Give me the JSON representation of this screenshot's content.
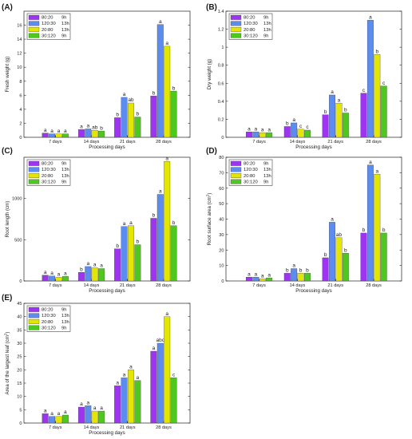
{
  "colors": {
    "purple": "#9D35F0",
    "blue": "#5C8CF0",
    "yellow": "#E3E600",
    "green": "#4EC81E",
    "axis": "#222222"
  },
  "legend": [
    {
      "label": "80:20",
      "hours": "9h"
    },
    {
      "label": "120:30",
      "hours": "13h"
    },
    {
      "label": "20:80",
      "hours": "13h"
    },
    {
      "label": "30:120",
      "hours": "9h"
    }
  ],
  "chart_data": [
    {
      "panel": "(A)",
      "type": "bar",
      "xlabel": "Processing days",
      "ylabel": "Fresh weight (g)",
      "ylim": [
        0,
        18
      ],
      "yticks": [
        "0",
        "2",
        "4",
        "6",
        "8",
        "10",
        "12",
        "14",
        "16"
      ],
      "categories": [
        "7 days",
        "14 days",
        "21 days",
        "28 days"
      ],
      "series": [
        {
          "name": "80:20 9h",
          "values": [
            0.6,
            1.1,
            2.8,
            5.9
          ],
          "letters": [
            "a",
            "a",
            "b",
            "b"
          ]
        },
        {
          "name": "120:30 13h",
          "values": [
            0.5,
            1.2,
            5.7,
            16.1
          ],
          "letters": [
            "a",
            "a",
            "a",
            "a"
          ]
        },
        {
          "name": "20:80 13h",
          "values": [
            0.5,
            1.0,
            4.9,
            13.0
          ],
          "letters": [
            "a",
            "ab",
            "ab",
            "a"
          ]
        },
        {
          "name": "30:120 9h",
          "values": [
            0.5,
            0.9,
            2.9,
            6.6
          ],
          "letters": [
            "a",
            "b",
            "b",
            "b"
          ]
        }
      ]
    },
    {
      "panel": "(B)",
      "type": "bar",
      "xlabel": "Processing days",
      "ylabel": "Dry weight (g)",
      "ylim": [
        0,
        1.4
      ],
      "yticks": [
        "0",
        "0.2",
        "0.4",
        "0.6",
        "0.8",
        "1",
        "1.2",
        "1.4"
      ],
      "categories": [
        "7 days",
        "14 days",
        "21 days",
        "28 days"
      ],
      "series": [
        {
          "name": "80:20 9h",
          "values": [
            0.06,
            0.12,
            0.25,
            0.49
          ],
          "letters": [
            "a",
            "b",
            "b",
            "c"
          ]
        },
        {
          "name": "120:30 13h",
          "values": [
            0.06,
            0.16,
            0.47,
            1.3
          ],
          "letters": [
            "a",
            "a",
            "a",
            "a"
          ]
        },
        {
          "name": "20:80 13h",
          "values": [
            0.05,
            0.09,
            0.38,
            0.92
          ],
          "letters": [
            "a",
            "c",
            "a",
            "b"
          ]
        },
        {
          "name": "30:120 9h",
          "values": [
            0.05,
            0.08,
            0.27,
            0.57
          ],
          "letters": [
            "a",
            "c",
            "b",
            "c"
          ]
        }
      ]
    },
    {
      "panel": "(C)",
      "type": "bar",
      "xlabel": "Processing days",
      "ylabel": "Root length (cm)",
      "ylim": [
        0,
        1500
      ],
      "yticks": [
        "0",
        "500",
        "1000"
      ],
      "ytick_values": [
        0,
        500,
        1000
      ],
      "categories": [
        "7 days",
        "14 days",
        "21 days",
        "28 days"
      ],
      "series": [
        {
          "name": "80:20 9h",
          "values": [
            70,
            105,
            390,
            760
          ],
          "letters": [
            "a",
            "b",
            "b",
            "b"
          ]
        },
        {
          "name": "120:30 13h",
          "values": [
            60,
            175,
            660,
            1050
          ],
          "letters": [
            "a",
            "a",
            "a",
            "a"
          ]
        },
        {
          "name": "20:80 13h",
          "values": [
            45,
            160,
            670,
            1450
          ],
          "letters": [
            "a",
            "a",
            "a",
            "a"
          ]
        },
        {
          "name": "30:120 9h",
          "values": [
            55,
            150,
            440,
            670
          ],
          "letters": [
            "a",
            "a",
            "b",
            "b"
          ]
        }
      ]
    },
    {
      "panel": "(D)",
      "type": "bar",
      "xlabel": "Processing days",
      "ylabel": "Root surface area (cm",
      "ylabel_sup": "2",
      "ylabel_end": ")",
      "ylim": [
        0,
        80
      ],
      "yticks": [
        "0",
        "10",
        "20",
        "30",
        "40",
        "50",
        "60",
        "70",
        "80"
      ],
      "categories": [
        "7 days",
        "14 days",
        "21 days",
        "28 days"
      ],
      "series": [
        {
          "name": "80:20 9h",
          "values": [
            2.5,
            5,
            15,
            31
          ],
          "letters": [
            "a",
            "b",
            "b",
            "b"
          ]
        },
        {
          "name": "120:30 13h",
          "values": [
            2.5,
            8,
            38,
            75
          ],
          "letters": [
            "a",
            "a",
            "a",
            "a"
          ]
        },
        {
          "name": "20:80 13h",
          "values": [
            1.5,
            5,
            28,
            69
          ],
          "letters": [
            "a",
            "b",
            "ab",
            "a"
          ]
        },
        {
          "name": "30:120 9h",
          "values": [
            2,
            5,
            18,
            31
          ],
          "letters": [
            "a",
            "b",
            "b",
            "b"
          ]
        }
      ]
    },
    {
      "panel": "(E)",
      "type": "bar",
      "xlabel": "Processing days",
      "ylabel": "Area of the largest leaf (cm",
      "ylabel_sup": "2",
      "ylabel_end": ")",
      "ylim": [
        0,
        45
      ],
      "yticks": [
        "0",
        "5",
        "10",
        "15",
        "20",
        "25",
        "30",
        "35",
        "40",
        "45"
      ],
      "categories": [
        "7 days",
        "14 days",
        "21 days",
        "28 days"
      ],
      "series": [
        {
          "name": "80:20 9h",
          "values": [
            3.5,
            6,
            14,
            27
          ],
          "letters": [
            "a",
            "a",
            "a",
            "a"
          ]
        },
        {
          "name": "120:30 13h",
          "values": [
            2.5,
            6.5,
            17,
            30
          ],
          "letters": [
            "a",
            "a",
            "a",
            "abc"
          ]
        },
        {
          "name": "20:80 13h",
          "values": [
            2.5,
            4.5,
            20,
            40
          ],
          "letters": [
            "a",
            "a",
            "a",
            "a"
          ]
        },
        {
          "name": "30:120 9h",
          "values": [
            3,
            4.5,
            16,
            17
          ],
          "letters": [
            "a",
            "a",
            "a",
            "c"
          ]
        }
      ]
    }
  ]
}
